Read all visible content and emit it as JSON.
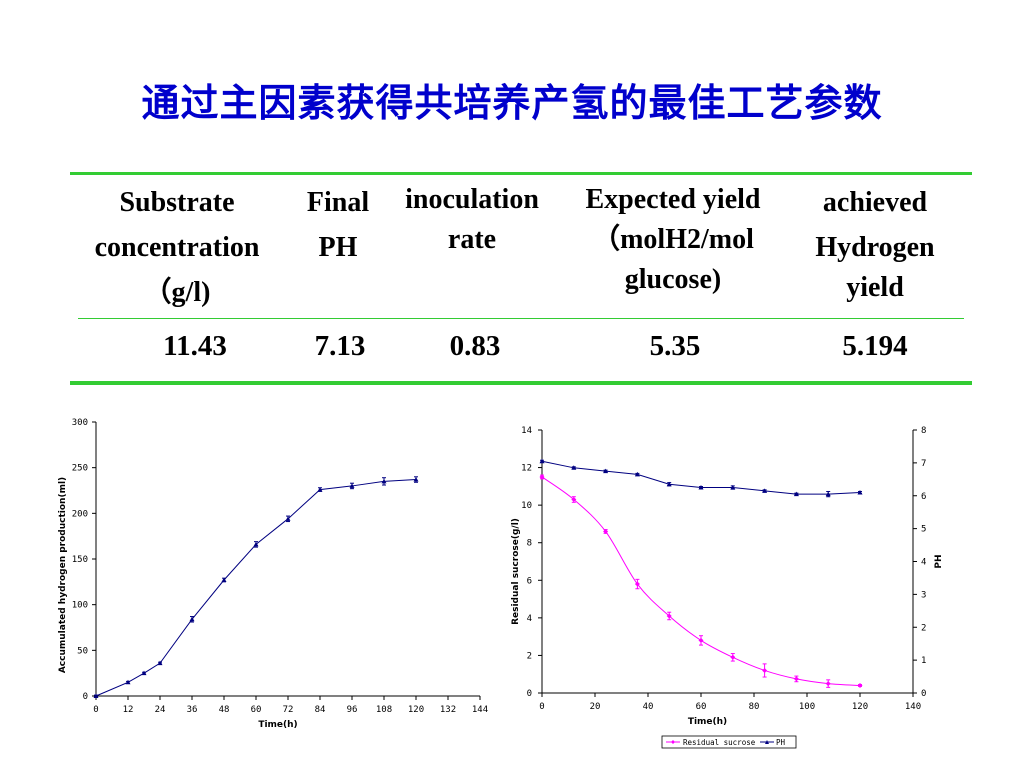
{
  "title": "通过主因素获得共培养产氢的最佳工艺参数",
  "colors": {
    "title": "#0000cc",
    "rule": "#33cc33",
    "sucrose": "#ff00ff",
    "ph": "#000080"
  },
  "table": {
    "headers": [
      [
        "Substrate",
        "concentration",
        "（g/l)"
      ],
      [
        "Final",
        "PH"
      ],
      [
        "inoculation",
        "rate"
      ],
      [
        "Expected yield",
        "（molH2/mol",
        "glucose)"
      ],
      [
        "achieved",
        "Hydrogen",
        "yield"
      ]
    ],
    "row": [
      "11.43",
      "7.13",
      "0.83",
      "5.35",
      "5.194"
    ]
  },
  "chart_data": [
    {
      "type": "line",
      "xlabel": "Time(h)",
      "ylabel": "Accumulated hydrogen production(ml)",
      "xlim": [
        0,
        144
      ],
      "ylim": [
        0,
        300
      ],
      "xticks": [
        "0",
        "12",
        "24",
        "36",
        "48",
        "60",
        "72",
        "84",
        "96",
        "108",
        "120",
        "132",
        "144"
      ],
      "yticks": [
        "0",
        "50",
        "100",
        "150",
        "200",
        "250",
        "300"
      ],
      "series": [
        {
          "x": [
            0,
            12,
            18,
            24,
            36,
            48,
            60,
            72,
            84,
            96,
            108,
            120
          ],
          "y": [
            0,
            15,
            25,
            36,
            84,
            127,
            166,
            194,
            226,
            230,
            235,
            237
          ],
          "err": [
            1,
            1,
            1,
            1,
            3,
            2,
            3,
            3,
            2,
            3,
            4,
            3
          ]
        }
      ]
    },
    {
      "type": "line",
      "xlabel": "Time(h)",
      "ylabel": "Residual sucrose(g/l)",
      "y2label": "PH",
      "xlim": [
        0,
        140
      ],
      "ylim": [
        0,
        14
      ],
      "y2lim": [
        0,
        8
      ],
      "xticks": [
        "0",
        "20",
        "40",
        "60",
        "80",
        "100",
        "120",
        "140"
      ],
      "yticks": [
        "0",
        "2",
        "4",
        "6",
        "8",
        "10",
        "12",
        "14"
      ],
      "y2ticks": [
        "0",
        "1",
        "2",
        "3",
        "4",
        "5",
        "6",
        "7",
        "8"
      ],
      "legend_position": "bottom",
      "series": [
        {
          "name": "Residual sucrose",
          "axis": "left",
          "x": [
            0,
            12,
            24,
            36,
            48,
            60,
            72,
            84,
            96,
            108,
            120
          ],
          "y": [
            11.5,
            10.3,
            8.6,
            5.8,
            4.1,
            2.8,
            1.9,
            1.2,
            0.75,
            0.5,
            0.4
          ],
          "err": [
            0.1,
            0.15,
            0.1,
            0.25,
            0.2,
            0.25,
            0.2,
            0.35,
            0.15,
            0.2,
            0.05
          ]
        },
        {
          "name": "PH",
          "axis": "right",
          "x": [
            0,
            12,
            24,
            36,
            48,
            60,
            72,
            84,
            96,
            108,
            120
          ],
          "y": [
            7.05,
            6.85,
            6.75,
            6.65,
            6.35,
            6.25,
            6.25,
            6.15,
            6.05,
            6.05,
            6.1
          ],
          "err": [
            0.03,
            0.03,
            0.03,
            0.03,
            0.05,
            0.03,
            0.05,
            0.03,
            0.03,
            0.08,
            0.03
          ]
        }
      ]
    }
  ]
}
